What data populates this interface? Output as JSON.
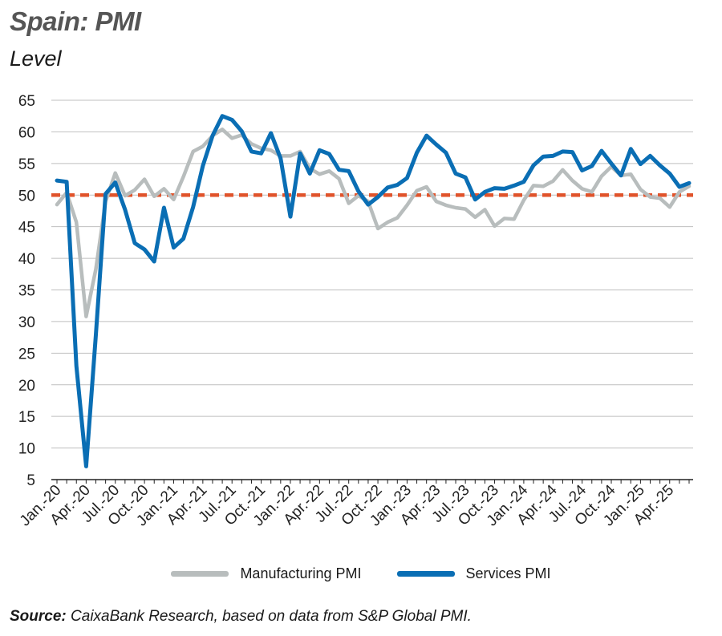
{
  "header": {
    "title": "Spain: PMI",
    "subtitle": "Level"
  },
  "source": {
    "label": "Source:",
    "text": "CaixaBank Research, based on data from S&P Global PMI."
  },
  "colors": {
    "manufacturing": "#b8bdbd",
    "services": "#0a6eb4",
    "reference": "#e0532b",
    "grid": "#bfbfbf"
  },
  "chart_data": {
    "type": "line",
    "ylim": [
      5,
      65
    ],
    "yticks": [
      5,
      10,
      15,
      20,
      25,
      30,
      35,
      40,
      45,
      50,
      55,
      60,
      65
    ],
    "grid": true,
    "legend_position": "bottom",
    "reference_line": {
      "y": 50,
      "style": "dashed"
    },
    "x": [
      "Jan.-20",
      "Feb.-20",
      "Mar.-20",
      "Apr.-20",
      "May-20",
      "Jun.-20",
      "Jul.-20",
      "Aug.-20",
      "Sep.-20",
      "Oct.-20",
      "Nov.-20",
      "Dec.-20",
      "Jan.-21",
      "Feb.-21",
      "Mar.-21",
      "Apr.-21",
      "May-21",
      "Jun.-21",
      "Jul.-21",
      "Aug.-21",
      "Sep.-21",
      "Oct.-21",
      "Nov.-21",
      "Dec.-21",
      "Jan.-22",
      "Feb.-22",
      "Mar.-22",
      "Apr.-22",
      "May-22",
      "Jun.-22",
      "Jul.-22",
      "Aug.-22",
      "Sep.-22",
      "Oct.-22",
      "Nov.-22",
      "Dec.-22",
      "Jan.-23",
      "Feb.-23",
      "Mar.-23",
      "Apr.-23",
      "May-23",
      "Jun.-23",
      "Jul.-23",
      "Aug.-23",
      "Sep.-23",
      "Oct.-23",
      "Nov.-23",
      "Dec.-23",
      "Jan.-24",
      "Feb.-24",
      "Mar.-24",
      "Apr.-24",
      "May-24",
      "Jun.-24",
      "Jul.-24",
      "Aug.-24",
      "Sep.-24",
      "Oct.-24",
      "Nov.-24",
      "Dec.-24",
      "Jan.-25",
      "Feb.-25",
      "Mar.-25",
      "Apr.-25",
      "May-25",
      "Jun.-25"
    ],
    "xtick_labels": [
      "Jan.-20",
      "Apr.-20",
      "Jul.-20",
      "Oct.-20",
      "Jan.-21",
      "Apr.-21",
      "Jul.-21",
      "Oct.-21",
      "Jan.-22",
      "Apr.-22",
      "Jul.-22",
      "Oct.-22",
      "Jan.-23",
      "Apr.-23",
      "Jul.-23",
      "Oct.-23",
      "Jan.-24",
      "Apr.-24",
      "Jul.-24",
      "Oct.-24",
      "Jan.-25",
      "Apr.-25"
    ],
    "series": [
      {
        "name": "Manufacturing PMI",
        "values": [
          48.5,
          50.4,
          45.7,
          30.8,
          38.3,
          49.0,
          53.5,
          49.9,
          50.8,
          52.5,
          49.8,
          51.0,
          49.3,
          52.9,
          56.9,
          57.7,
          59.4,
          60.4,
          59.0,
          59.5,
          58.1,
          57.4,
          57.1,
          56.2,
          56.2,
          56.9,
          54.2,
          53.3,
          53.8,
          52.6,
          48.7,
          49.9,
          49.0,
          44.7,
          45.7,
          46.4,
          48.4,
          50.7,
          51.3,
          49.0,
          48.4,
          48.0,
          47.8,
          46.5,
          47.7,
          45.1,
          46.3,
          46.2,
          49.2,
          51.5,
          51.4,
          52.2,
          54.0,
          52.3,
          51.0,
          50.5,
          53.0,
          54.5,
          53.1,
          53.3,
          50.9,
          49.7,
          49.5,
          48.1,
          50.5,
          51.4
        ]
      },
      {
        "name": "Services PMI",
        "values": [
          52.3,
          52.1,
          23.0,
          7.1,
          27.9,
          50.2,
          52.0,
          47.7,
          42.4,
          41.4,
          39.5,
          48.0,
          41.7,
          43.1,
          48.1,
          54.6,
          59.4,
          62.5,
          61.9,
          60.1,
          56.9,
          56.6,
          59.8,
          55.8,
          46.6,
          56.6,
          53.4,
          57.1,
          56.5,
          54.0,
          53.8,
          50.6,
          48.5,
          49.7,
          51.2,
          51.6,
          52.7,
          56.7,
          59.4,
          58.0,
          56.7,
          53.4,
          52.8,
          49.3,
          50.5,
          51.1,
          51.0,
          51.5,
          52.1,
          54.7,
          56.1,
          56.2,
          56.9,
          56.8,
          53.9,
          54.6,
          57.0,
          55.0,
          53.1,
          57.3,
          54.9,
          56.2,
          54.7,
          53.4,
          51.3,
          51.9
        ]
      }
    ]
  }
}
